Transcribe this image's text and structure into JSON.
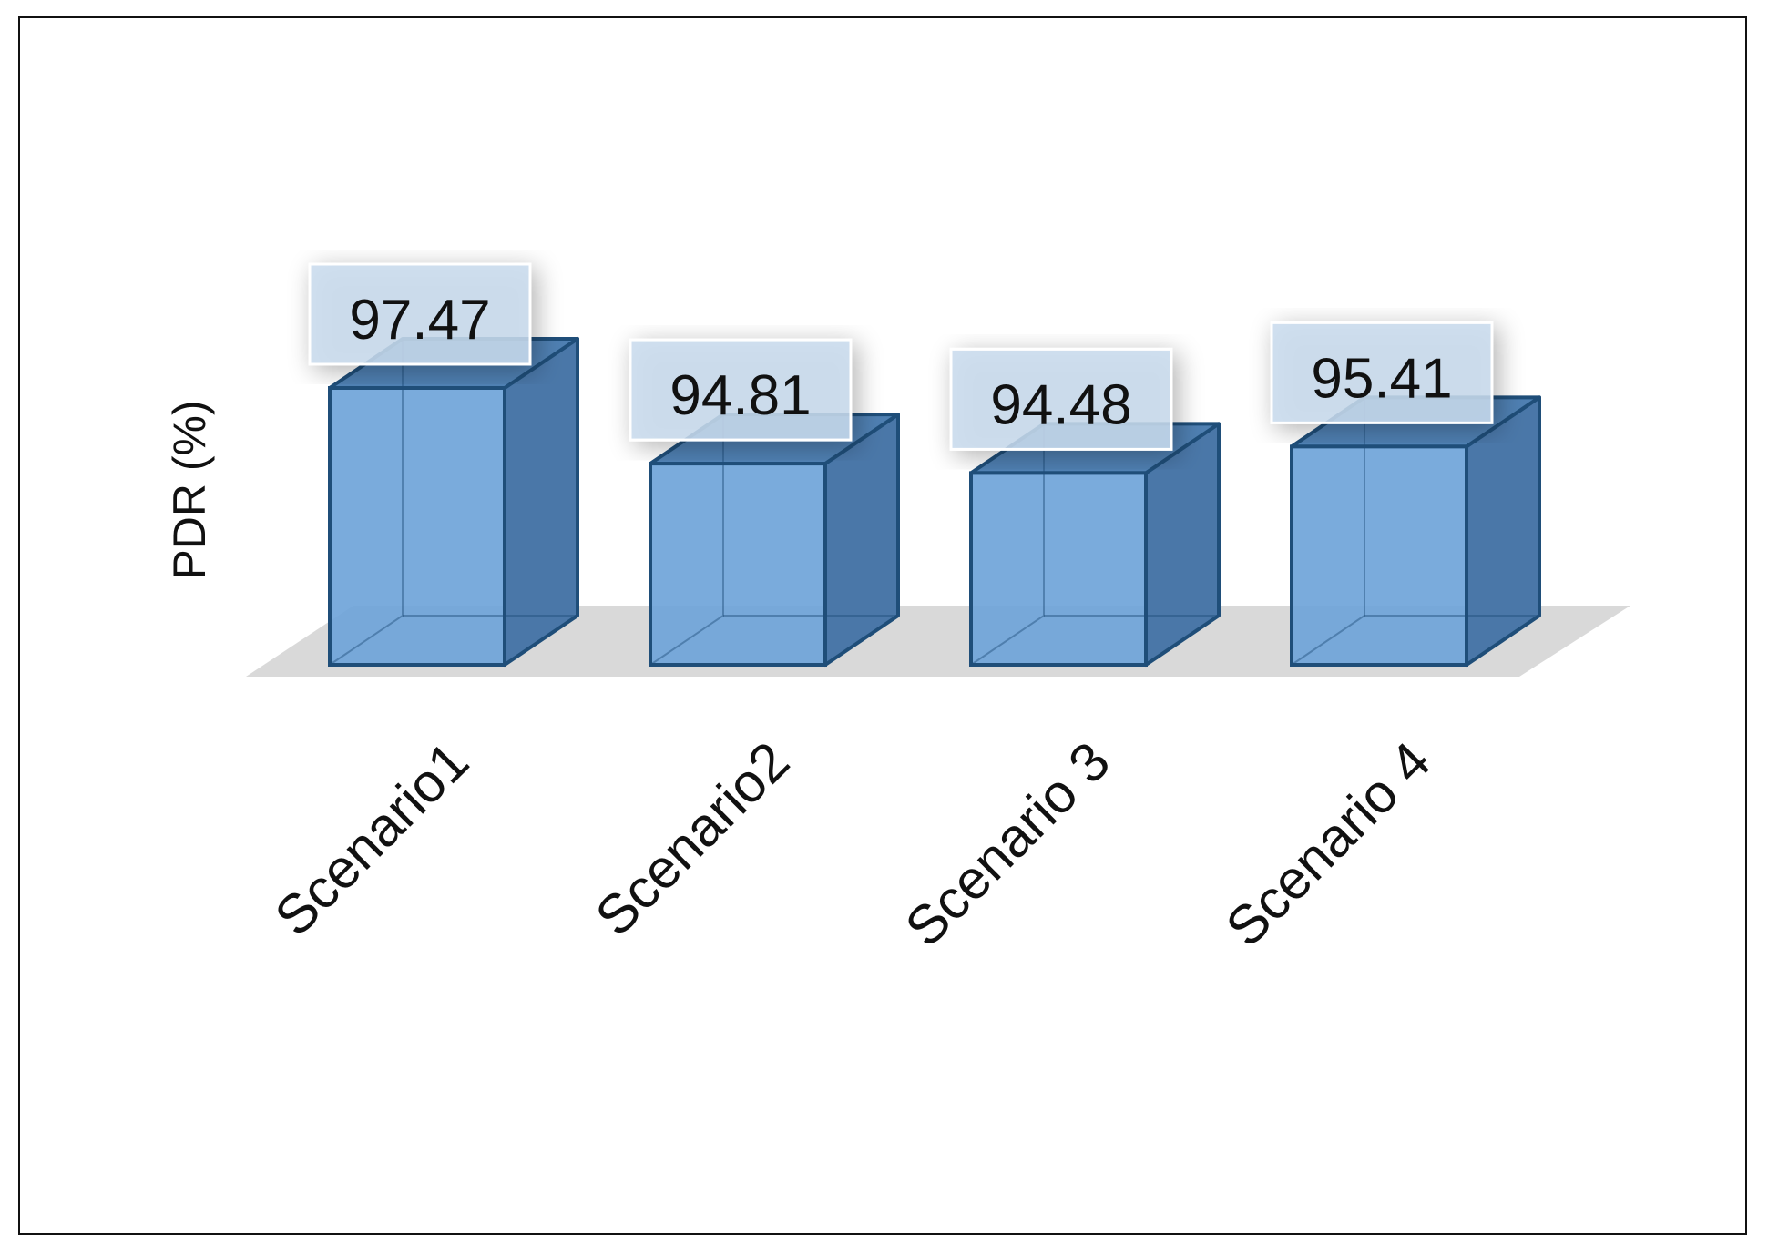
{
  "chart_data": {
    "type": "bar",
    "title": "",
    "xlabel": "",
    "ylabel": "PDR (%)",
    "categories": [
      "Scenario1",
      "Scenario2",
      "Scenario 3",
      "Scenario 4"
    ],
    "values": [
      97.47,
      94.81,
      94.48,
      95.41
    ],
    "data_labels": [
      "97.47",
      "94.81",
      "94.48",
      "95.41"
    ],
    "ylim": [
      93.5,
      97.47
    ],
    "grid": false,
    "legend": "none",
    "style": "3d-column"
  },
  "colors": {
    "bar_front": "#6fa4d9",
    "bar_top": "#4f80b2",
    "bar_side": "#4a77a8",
    "bar_edge": "#1f4e79",
    "floor": "#d9d9d9",
    "label_box": "#c9dcee",
    "text": "#111111"
  }
}
